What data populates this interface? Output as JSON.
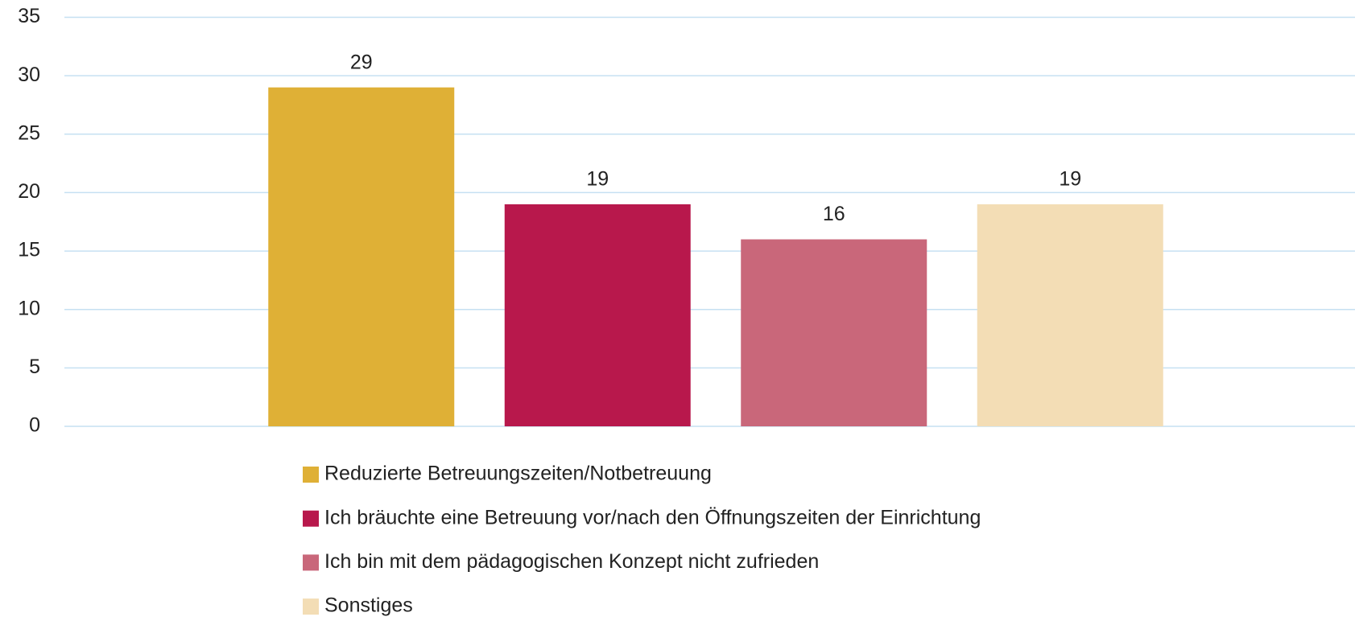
{
  "chart_data": {
    "type": "bar",
    "categories": [
      null
    ],
    "series": [
      {
        "name": "Reduzierte Betreuungszeiten/Notbetreuung",
        "color": "#dfb036",
        "values": [
          29
        ]
      },
      {
        "name": "Ich bräuchte eine Betreuung vor/nach den Öffnungszeiten der Einrichtung",
        "color": "#b8184c",
        "values": [
          19
        ]
      },
      {
        "name": "Ich bin mit dem pädagogischen Konzept nicht zufrieden",
        "color": "#c9677a",
        "values": [
          16
        ]
      },
      {
        "name": "Sonstiges",
        "color": "#f3ddb5",
        "values": [
          19
        ]
      }
    ],
    "ylim": [
      0,
      35
    ],
    "yticks": [
      0,
      5,
      10,
      15,
      20,
      25,
      30,
      35
    ],
    "grid": true,
    "legend": "bottom"
  }
}
